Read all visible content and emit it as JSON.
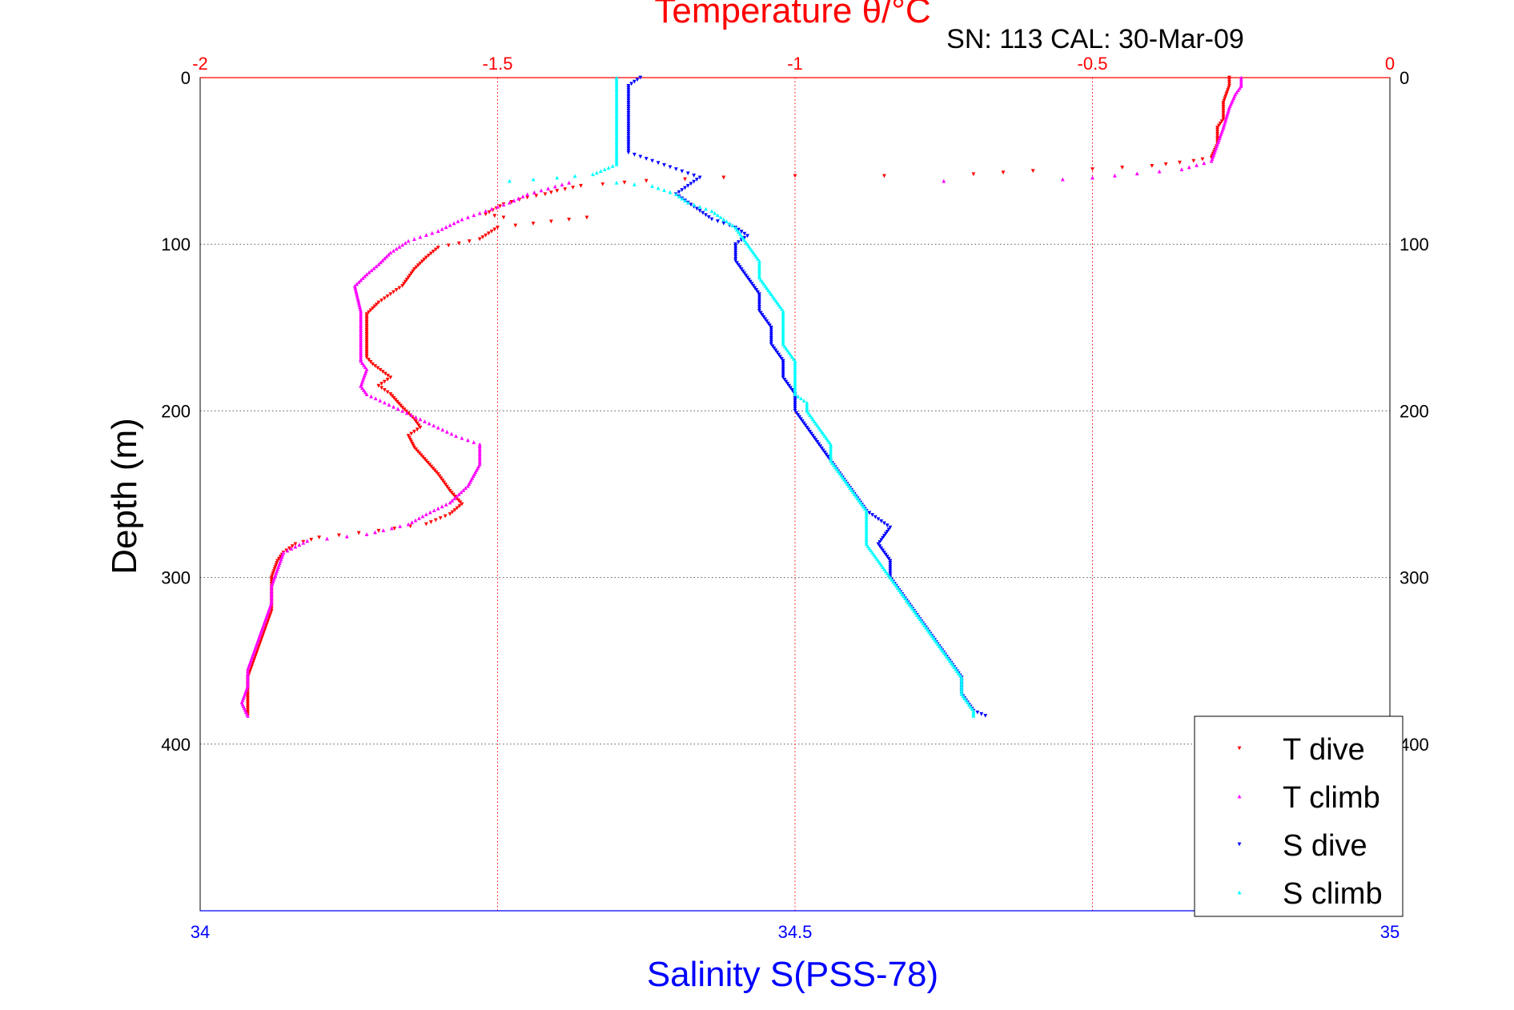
{
  "title": "Temperature θ/°C",
  "subtitle": "SN: 113  CAL: 30-Mar-09",
  "ylabel": "Depth (m)",
  "xlabel_bottom": "Salinity S(PSS-78)",
  "colors": {
    "t_dive": "#ff0000",
    "t_climb": "#ff00ff",
    "s_dive": "#0000ff",
    "s_climb": "#00ffff",
    "top_axis": "#ff0000",
    "bottom_axis": "#0000ff",
    "grid_depth": "#555555"
  },
  "chart_data": {
    "type": "scatter",
    "title": "Temperature θ/°C",
    "subtitle": "SN: 113  CAL: 30-Mar-09",
    "ylabel": "Depth (m)",
    "ylim": [
      0,
      500
    ],
    "y_reversed": true,
    "x_top": {
      "label": "Temperature θ/°C",
      "lim": [
        -2,
        0
      ],
      "ticks": [
        "-2",
        "-1.5",
        "-1",
        "-0.5",
        "0"
      ]
    },
    "x_bottom": {
      "label": "Salinity S(PSS-78)",
      "lim": [
        34,
        35
      ],
      "ticks": [
        "34",
        "34.5",
        "35"
      ]
    },
    "y_ticks": [
      "0",
      "100",
      "200",
      "300",
      "400"
    ],
    "grid": true,
    "legend_position": "bottom-right",
    "legend": [
      "T dive",
      "T climb",
      "S dive",
      "S climb"
    ],
    "series": [
      {
        "name": "T dive",
        "axis": "top",
        "marker": "triangle-down",
        "points": [
          [
            -0.27,
            0
          ],
          [
            -0.27,
            5
          ],
          [
            -0.28,
            15
          ],
          [
            -0.28,
            25
          ],
          [
            -0.29,
            30
          ],
          [
            -0.29,
            40
          ],
          [
            -0.3,
            48
          ],
          [
            -0.33,
            50
          ],
          [
            -0.4,
            53
          ],
          [
            -0.5,
            55
          ],
          [
            -0.6,
            56
          ],
          [
            -0.7,
            58
          ],
          [
            -0.85,
            59
          ],
          [
            -1.0,
            59
          ],
          [
            -1.12,
            60
          ],
          [
            -1.25,
            62
          ],
          [
            -1.36,
            65
          ],
          [
            -1.4,
            68
          ],
          [
            -1.42,
            70
          ],
          [
            -1.45,
            72
          ],
          [
            -1.49,
            76
          ],
          [
            -1.52,
            82
          ],
          [
            -1.49,
            84
          ],
          [
            -1.35,
            84
          ],
          [
            -1.5,
            90
          ],
          [
            -1.53,
            97
          ],
          [
            -1.6,
            102
          ],
          [
            -1.62,
            108
          ],
          [
            -1.64,
            115
          ],
          [
            -1.66,
            125
          ],
          [
            -1.7,
            135
          ],
          [
            -1.72,
            142
          ],
          [
            -1.72,
            155
          ],
          [
            -1.72,
            168
          ],
          [
            -1.71,
            172
          ],
          [
            -1.68,
            180
          ],
          [
            -1.7,
            185
          ],
          [
            -1.68,
            190
          ],
          [
            -1.66,
            198
          ],
          [
            -1.64,
            205
          ],
          [
            -1.63,
            210
          ],
          [
            -1.65,
            215
          ],
          [
            -1.64,
            222
          ],
          [
            -1.62,
            230
          ],
          [
            -1.6,
            238
          ],
          [
            -1.58,
            248
          ],
          [
            -1.56,
            256
          ],
          [
            -1.58,
            262
          ],
          [
            -1.62,
            268
          ],
          [
            -1.7,
            272
          ],
          [
            -1.8,
            276
          ],
          [
            -1.84,
            280
          ],
          [
            -1.86,
            285
          ],
          [
            -1.87,
            290
          ],
          [
            -1.88,
            300
          ],
          [
            -1.88,
            310
          ],
          [
            -1.88,
            320
          ],
          [
            -1.89,
            330
          ],
          [
            -1.9,
            340
          ],
          [
            -1.91,
            350
          ],
          [
            -1.92,
            360
          ],
          [
            -1.92,
            370
          ],
          [
            -1.92,
            383
          ]
        ]
      },
      {
        "name": "T climb",
        "axis": "top",
        "marker": "triangle-up",
        "points": [
          [
            -0.25,
            0
          ],
          [
            -0.25,
            5
          ],
          [
            -0.26,
            10
          ],
          [
            -0.27,
            18
          ],
          [
            -0.28,
            30
          ],
          [
            -0.29,
            40
          ],
          [
            -0.3,
            50
          ],
          [
            -0.35,
            55
          ],
          [
            -0.5,
            60
          ],
          [
            -0.55,
            61
          ],
          [
            -0.75,
            62
          ],
          [
            -1.38,
            63
          ],
          [
            -1.45,
            70
          ],
          [
            -1.48,
            75
          ],
          [
            -1.52,
            80
          ],
          [
            -1.56,
            85
          ],
          [
            -1.6,
            92
          ],
          [
            -1.65,
            98
          ],
          [
            -1.68,
            105
          ],
          [
            -1.7,
            112
          ],
          [
            -1.72,
            118
          ],
          [
            -1.74,
            125
          ],
          [
            -1.73,
            140
          ],
          [
            -1.73,
            155
          ],
          [
            -1.73,
            170
          ],
          [
            -1.72,
            175
          ],
          [
            -1.73,
            185
          ],
          [
            -1.72,
            190
          ],
          [
            -1.69,
            195
          ],
          [
            -1.66,
            200
          ],
          [
            -1.63,
            205
          ],
          [
            -1.6,
            210
          ],
          [
            -1.57,
            215
          ],
          [
            -1.53,
            220
          ],
          [
            -1.53,
            232
          ],
          [
            -1.55,
            245
          ],
          [
            -1.58,
            255
          ],
          [
            -1.62,
            262
          ],
          [
            -1.65,
            268
          ],
          [
            -1.72,
            274
          ],
          [
            -1.82,
            278
          ],
          [
            -1.86,
            285
          ],
          [
            -1.87,
            295
          ],
          [
            -1.88,
            305
          ],
          [
            -1.88,
            315
          ],
          [
            -1.89,
            325
          ],
          [
            -1.9,
            335
          ],
          [
            -1.91,
            345
          ],
          [
            -1.92,
            355
          ],
          [
            -1.92,
            365
          ],
          [
            -1.93,
            375
          ],
          [
            -1.92,
            383
          ]
        ]
      },
      {
        "name": "S dive",
        "axis": "bottom",
        "marker": "triangle-down",
        "points": [
          [
            34.37,
            0
          ],
          [
            34.36,
            5
          ],
          [
            34.36,
            15
          ],
          [
            34.36,
            25
          ],
          [
            34.36,
            35
          ],
          [
            34.36,
            45
          ],
          [
            34.38,
            50
          ],
          [
            34.4,
            55
          ],
          [
            34.42,
            60
          ],
          [
            34.41,
            65
          ],
          [
            34.4,
            70
          ],
          [
            34.41,
            75
          ],
          [
            34.42,
            80
          ],
          [
            34.43,
            85
          ],
          [
            34.45,
            90
          ],
          [
            34.46,
            95
          ],
          [
            34.45,
            100
          ],
          [
            34.45,
            110
          ],
          [
            34.46,
            120
          ],
          [
            34.47,
            130
          ],
          [
            34.47,
            140
          ],
          [
            34.48,
            150
          ],
          [
            34.48,
            160
          ],
          [
            34.49,
            170
          ],
          [
            34.49,
            180
          ],
          [
            34.5,
            190
          ],
          [
            34.5,
            200
          ],
          [
            34.51,
            210
          ],
          [
            34.52,
            220
          ],
          [
            34.53,
            230
          ],
          [
            34.54,
            240
          ],
          [
            34.55,
            250
          ],
          [
            34.56,
            260
          ],
          [
            34.58,
            270
          ],
          [
            34.57,
            280
          ],
          [
            34.58,
            290
          ],
          [
            34.58,
            300
          ],
          [
            34.59,
            310
          ],
          [
            34.6,
            320
          ],
          [
            34.61,
            330
          ],
          [
            34.62,
            340
          ],
          [
            34.63,
            350
          ],
          [
            34.64,
            360
          ],
          [
            34.64,
            370
          ],
          [
            34.65,
            380
          ],
          [
            34.66,
            383
          ]
        ]
      },
      {
        "name": "S climb",
        "axis": "bottom",
        "marker": "triangle-up",
        "points": [
          [
            34.35,
            0
          ],
          [
            34.35,
            5
          ],
          [
            34.35,
            15
          ],
          [
            34.35,
            25
          ],
          [
            34.35,
            35
          ],
          [
            34.35,
            45
          ],
          [
            34.35,
            52
          ],
          [
            34.34,
            55
          ],
          [
            34.33,
            58
          ],
          [
            34.3,
            60
          ],
          [
            34.26,
            62
          ],
          [
            34.35,
            63
          ],
          [
            34.38,
            65
          ],
          [
            34.4,
            70
          ],
          [
            34.41,
            75
          ],
          [
            34.43,
            80
          ],
          [
            34.44,
            85
          ],
          [
            34.45,
            90
          ],
          [
            34.46,
            100
          ],
          [
            34.47,
            110
          ],
          [
            34.47,
            120
          ],
          [
            34.48,
            130
          ],
          [
            34.49,
            140
          ],
          [
            34.49,
            150
          ],
          [
            34.49,
            160
          ],
          [
            34.5,
            170
          ],
          [
            34.5,
            180
          ],
          [
            34.5,
            190
          ],
          [
            34.51,
            195
          ],
          [
            34.51,
            200
          ],
          [
            34.52,
            210
          ],
          [
            34.53,
            220
          ],
          [
            34.53,
            230
          ],
          [
            34.54,
            240
          ],
          [
            34.55,
            250
          ],
          [
            34.56,
            260
          ],
          [
            34.56,
            270
          ],
          [
            34.56,
            280
          ],
          [
            34.57,
            290
          ],
          [
            34.58,
            300
          ],
          [
            34.59,
            310
          ],
          [
            34.6,
            320
          ],
          [
            34.61,
            330
          ],
          [
            34.62,
            340
          ],
          [
            34.63,
            350
          ],
          [
            34.64,
            360
          ],
          [
            34.64,
            370
          ],
          [
            34.65,
            380
          ],
          [
            34.65,
            383
          ]
        ]
      }
    ]
  }
}
